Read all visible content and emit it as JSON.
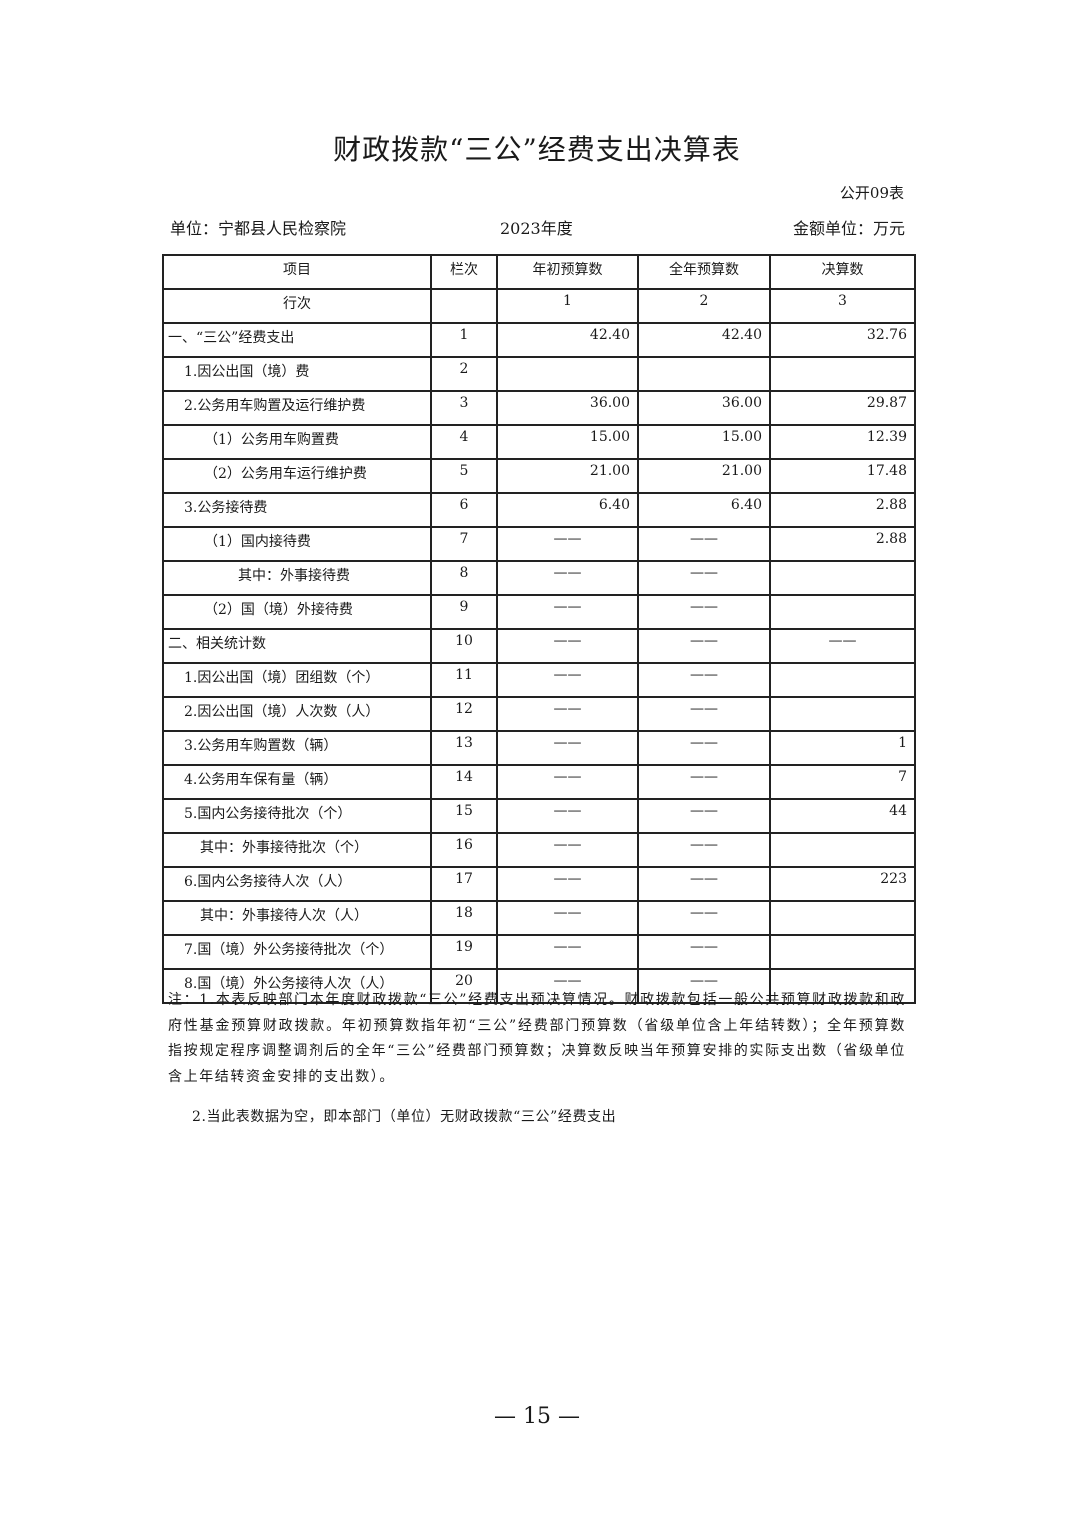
{
  "title": "财政拨款“三公”经费支出决算表",
  "form_code": "公开09表",
  "unit": "单位：宁都县人民检察院",
  "year": "2023年度",
  "currency_unit": "金额单位：万元",
  "table": {
    "headers": [
      "项目",
      "栏次",
      "年初预算数",
      "全年预算数",
      "决算数"
    ],
    "index_row": [
      "行次",
      "",
      "1",
      "2",
      "3"
    ],
    "rows": [
      {
        "item": "一、“三公”经费支出",
        "indent": 0,
        "no": "1",
        "initial": "42.40",
        "full": "42.40",
        "final": "32.76"
      },
      {
        "item": "1.因公出国（境）费",
        "indent": 1,
        "no": "2",
        "initial": "",
        "full": "",
        "final": ""
      },
      {
        "item": "2.公务用车购置及运行维护费",
        "indent": 1,
        "no": "3",
        "initial": "36.00",
        "full": "36.00",
        "final": "29.87"
      },
      {
        "item": "（1）公务用车购置费",
        "indent": 2,
        "no": "4",
        "initial": "15.00",
        "full": "15.00",
        "final": "12.39"
      },
      {
        "item": "（2）公务用车运行维护费",
        "indent": 2,
        "no": "5",
        "initial": "21.00",
        "full": "21.00",
        "final": "17.48"
      },
      {
        "item": "3.公务接待费",
        "indent": 1,
        "no": "6",
        "initial": "6.40",
        "full": "6.40",
        "final": "2.88"
      },
      {
        "item": "（1）国内接待费",
        "indent": 2,
        "no": "7",
        "initial": "——",
        "full": "——",
        "final": "2.88"
      },
      {
        "item": "其中：外事接待费",
        "indent": 3,
        "no": "8",
        "initial": "——",
        "full": "——",
        "final": ""
      },
      {
        "item": "（2）国（境）外接待费",
        "indent": 2,
        "no": "9",
        "initial": "——",
        "full": "——",
        "final": ""
      },
      {
        "item": "二、相关统计数",
        "indent": 0,
        "no": "10",
        "initial": "——",
        "full": "——",
        "final": "——"
      },
      {
        "item": "1.因公出国（境）团组数（个）",
        "indent": 1,
        "no": "11",
        "initial": "——",
        "full": "——",
        "final": ""
      },
      {
        "item": "2.因公出国（境）人次数（人）",
        "indent": 1,
        "no": "12",
        "initial": "——",
        "full": "——",
        "final": ""
      },
      {
        "item": "3.公务用车购置数（辆）",
        "indent": 1,
        "no": "13",
        "initial": "——",
        "full": "——",
        "final": "1"
      },
      {
        "item": "4.公务用车保有量（辆）",
        "indent": 1,
        "no": "14",
        "initial": "——",
        "full": "——",
        "final": "7"
      },
      {
        "item": "5.国内公务接待批次（个）",
        "indent": 1,
        "no": "15",
        "initial": "——",
        "full": "——",
        "final": "44"
      },
      {
        "item": "其中：外事接待批次（个）",
        "indent": 4,
        "no": "16",
        "initial": "——",
        "full": "——",
        "final": ""
      },
      {
        "item": "6.国内公务接待人次（人）",
        "indent": 1,
        "no": "17",
        "initial": "——",
        "full": "——",
        "final": "223"
      },
      {
        "item": "其中：外事接待人次（人）",
        "indent": 4,
        "no": "18",
        "initial": "——",
        "full": "——",
        "final": ""
      },
      {
        "item": "7.国（境）外公务接待批次（个）",
        "indent": 1,
        "no": "19",
        "initial": "——",
        "full": "——",
        "final": ""
      },
      {
        "item": "8.国（境）外公务接待人次（人）",
        "indent": 1,
        "no": "20",
        "initial": "——",
        "full": "——",
        "final": ""
      }
    ]
  },
  "notes": {
    "note1": "注：1.本表反映部门本年度财政拨款“三公”经费支出预决算情况。财政拨款包括一般公共预算财政拨款和政府性基金预算财政拨款。年初预算数指年初“三公”经费部门预算数（省级单位含上年结转数）；全年预算数指按规定程序调整调剂后的全年“三公”经费部门预算数；决算数反映当年预算安排的实际支出数（省级单位含上年结转资金安排的支出数）。",
    "note2": "2.当此表数据为空，即本部门（单位）无财政拨款“三公”经费支出"
  },
  "page_number": "— 15 —"
}
